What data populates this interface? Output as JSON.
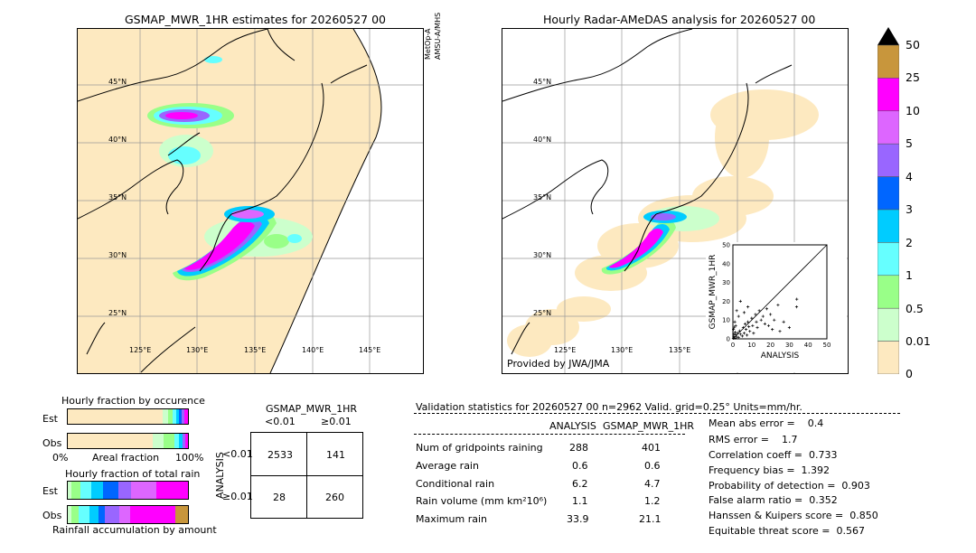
{
  "left_map": {
    "title": "GSMAP_MWR_1HR estimates for 20260527 00",
    "satellite_label_1": "MetOp-A",
    "satellite_label_2": "AMSU-A/MHS",
    "lat_labels": [
      "45°N",
      "40°N",
      "35°N",
      "30°N",
      "25°N"
    ],
    "lon_labels": [
      "125°E",
      "130°E",
      "135°E",
      "140°E",
      "145°E"
    ]
  },
  "right_map": {
    "title": "Hourly Radar-AMeDAS analysis for 20260527 00",
    "lat_labels": [
      "45°N",
      "40°N",
      "35°N",
      "30°N",
      "25°N"
    ],
    "lon_labels": [
      "125°E",
      "130°E",
      "135°E"
    ],
    "provider": "Provided by JWA/JMA"
  },
  "colorbar": {
    "labels": [
      "50",
      "25",
      "10",
      "5",
      "4",
      "3",
      "2",
      "1",
      "0.5",
      "0.01",
      "0"
    ],
    "colors": [
      "#c8963c",
      "#ff00ff",
      "#dd66ff",
      "#9966ff",
      "#0066ff",
      "#00ccff",
      "#66ffff",
      "#99ff88",
      "#ccffcc",
      "#fde9c0"
    ],
    "overflow_color": "#000000"
  },
  "chart_data": [
    {
      "type": "scatter",
      "title": "",
      "xlabel": "ANALYSIS",
      "ylabel": "GSMAP_MWR_1HR",
      "xlim": [
        0,
        50
      ],
      "ylim": [
        0,
        50
      ],
      "xticks": [
        "0",
        "10",
        "20",
        "30",
        "40",
        "50"
      ],
      "yticks": [
        "0",
        "10",
        "20",
        "30",
        "40",
        "50"
      ],
      "points": [
        [
          0.2,
          0.3
        ],
        [
          0.5,
          1.2
        ],
        [
          1,
          0.4
        ],
        [
          1.5,
          2.1
        ],
        [
          2,
          1
        ],
        [
          2.5,
          3
        ],
        [
          3,
          0.8
        ],
        [
          3.5,
          4.2
        ],
        [
          4,
          2.5
        ],
        [
          0.3,
          5
        ],
        [
          0.8,
          6.2
        ],
        [
          1.2,
          3.5
        ],
        [
          5,
          1.5
        ],
        [
          5.5,
          6
        ],
        [
          6,
          3
        ],
        [
          6.5,
          8
        ],
        [
          7,
          5
        ],
        [
          7.5,
          2
        ],
        [
          8,
          9
        ],
        [
          8.5,
          6.5
        ],
        [
          9,
          4
        ],
        [
          10,
          11
        ],
        [
          10.5,
          7
        ],
        [
          11,
          3
        ],
        [
          12,
          13
        ],
        [
          12.5,
          9
        ],
        [
          13,
          6
        ],
        [
          14,
          15
        ],
        [
          15,
          10
        ],
        [
          16,
          12
        ],
        [
          17,
          8
        ],
        [
          18,
          16
        ],
        [
          19,
          7
        ],
        [
          20,
          13
        ],
        [
          21,
          5
        ],
        [
          22,
          10
        ],
        [
          24,
          18
        ],
        [
          25,
          4
        ],
        [
          27,
          9
        ],
        [
          30,
          6
        ],
        [
          33.9,
          17
        ],
        [
          34,
          21.1
        ],
        [
          3,
          12
        ],
        [
          2,
          15
        ],
        [
          4,
          20
        ],
        [
          1,
          9
        ],
        [
          6,
          14
        ],
        [
          8,
          17
        ],
        [
          1.5,
          7
        ],
        [
          0.5,
          2.5
        ]
      ]
    },
    {
      "type": "bar",
      "title": "Hourly fraction by occurence",
      "xlabel": "Areal fraction",
      "xticks": [
        "0%",
        "100%"
      ],
      "categories": [
        "Est",
        "Obs"
      ]
    },
    {
      "type": "bar",
      "title": "Hourly fraction of total rain",
      "xlabel": "Rainfall accumulation by amount",
      "categories": [
        "Est",
        "Obs"
      ]
    },
    {
      "type": "table",
      "title": "GSMAP_MWR_1HR",
      "col_headers": [
        "<0.01",
        "≥0.01"
      ],
      "row_label": "ANALYSIS",
      "row_headers": [
        "<0.01",
        "≥0.01"
      ],
      "cells": [
        [
          "2533",
          "141"
        ],
        [
          "28",
          "260"
        ]
      ]
    }
  ],
  "validation": {
    "header": "Validation statistics for 20260527 00  n=2962 Valid. grid=0.25° Units=mm/hr.",
    "col_analysis": "ANALYSIS",
    "col_gsmap": "GSMAP_MWR_1HR",
    "rows": [
      {
        "label": "Num of gridpoints raining",
        "a": "288",
        "g": "401"
      },
      {
        "label": "Average rain",
        "a": "0.6",
        "g": "0.6"
      },
      {
        "label": "Conditional rain",
        "a": "6.2",
        "g": "4.7"
      },
      {
        "label": "Rain volume (mm km²10⁶)",
        "a": "1.1",
        "g": "1.2"
      },
      {
        "label": "Maximum rain",
        "a": "33.9",
        "g": "21.1"
      }
    ],
    "scores": [
      "Mean abs error =    0.4",
      "RMS error =    1.7",
      "Correlation coeff =  0.733",
      "Frequency bias =  1.392",
      "Probability of detection =  0.903",
      "False alarm ratio =  0.352",
      "Hanssen & Kuipers score =  0.850",
      "Equitable threat score =  0.567"
    ]
  }
}
